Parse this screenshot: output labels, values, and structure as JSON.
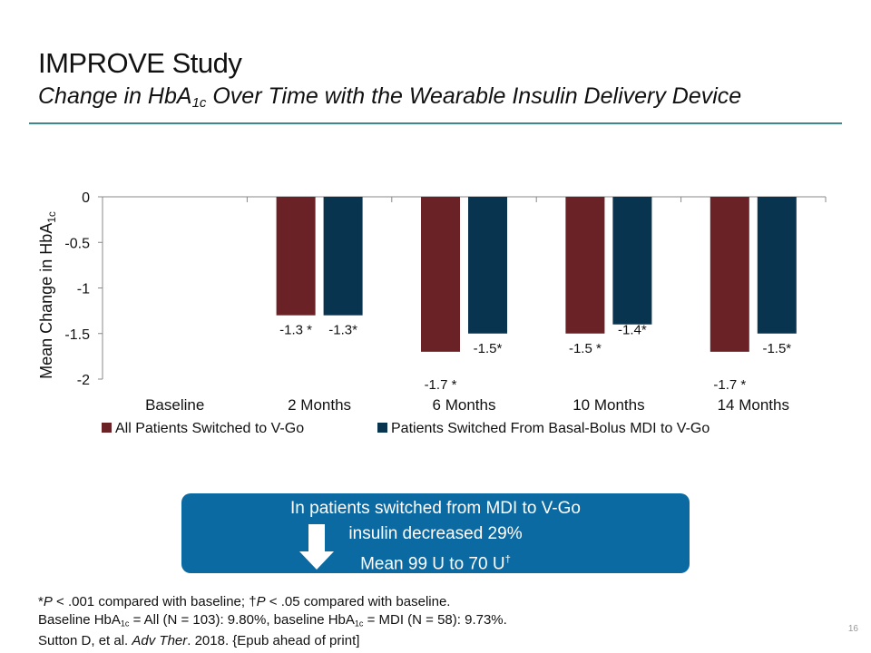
{
  "slide": {
    "title": "IMPROVE Study",
    "subtitle_pre": "Change in HbA",
    "subtitle_sub": "1c",
    "subtitle_post": " Over Time with the Wearable Insulin Delivery Device",
    "page_number": "16"
  },
  "chart_data": {
    "type": "bar",
    "categories": [
      "Baseline",
      "2 Months",
      "6 Months",
      "10 Months",
      "14 Months"
    ],
    "series": [
      {
        "name": "All Patients Switched to V-Go",
        "color": "#6b2227",
        "values": [
          0,
          -1.3,
          -1.7,
          -1.5,
          -1.7
        ],
        "labels": [
          "",
          "-1.3 *",
          "-1.7 *",
          "-1.5 *",
          "-1.7 *"
        ]
      },
      {
        "name": "Patients Switched From Basal-Bolus MDI to V-Go",
        "color": "#08344f",
        "values": [
          0,
          -1.3,
          -1.5,
          -1.4,
          -1.5
        ],
        "labels": [
          "",
          "-1.3*",
          "-1.5*",
          "-1.4*",
          "-1.5*"
        ]
      }
    ],
    "ylabel_pre": "Mean Change in HbA",
    "ylabel_sub": "1c",
    "ylim": [
      -2,
      0
    ],
    "yticks": [
      0,
      -0.5,
      -1,
      -1.5,
      -2
    ],
    "ytick_labels": [
      "0",
      "-0.5",
      "-1",
      "-1.5",
      "-2"
    ],
    "legend_position": "bottom",
    "grid": false
  },
  "callout": {
    "line1": "In patients switched from MDI to V-Go",
    "line2": "insulin decreased 29%",
    "line3": "Mean 99 U to 70 U",
    "line3_mark": "†"
  },
  "footnotes": {
    "l1_a": "*",
    "l1_b": "P",
    "l1_c": " < .001 compared with baseline; †",
    "l1_d": "P",
    "l1_e": " < .05 compared with baseline.",
    "l2_a": "Baseline HbA",
    "l2_b": "1c",
    "l2_c": " = All (N = 103): 9.80%, baseline HbA",
    "l2_d": "1c",
    "l2_e": " = MDI (N = 58): 9.73%.",
    "l3_a": "Sutton D, et al. ",
    "l3_b": "Adv Ther",
    "l3_c": ". 2018. {Epub ahead of print]"
  }
}
